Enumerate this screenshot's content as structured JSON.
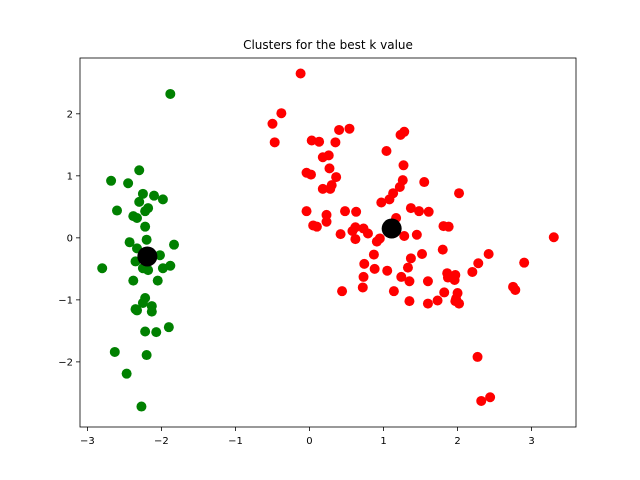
{
  "chart_data": {
    "type": "scatter",
    "title": "Clusters for the best k value",
    "xlabel": "",
    "ylabel": "",
    "xlim": [
      -3.1,
      3.6
    ],
    "ylim": [
      -3.05,
      2.9
    ],
    "xticks": [
      -3,
      -2,
      -1,
      0,
      1,
      2,
      3
    ],
    "xtick_labels": [
      "−3",
      "−2",
      "−1",
      "0",
      "1",
      "2",
      "3"
    ],
    "yticks": [
      -2,
      -1,
      0,
      1,
      2
    ],
    "ytick_labels": [
      "−2",
      "−1",
      "0",
      "1",
      "2"
    ],
    "grid": false,
    "legend": "none",
    "series": [
      {
        "color": "#008000",
        "points": [
          [
            -1.88,
            2.32
          ],
          [
            -2.68,
            0.92
          ],
          [
            -2.3,
            1.09
          ],
          [
            -2.45,
            0.88
          ],
          [
            -2.6,
            0.44
          ],
          [
            -2.25,
            0.71
          ],
          [
            -2.1,
            0.68
          ],
          [
            -1.98,
            0.62
          ],
          [
            -2.3,
            0.58
          ],
          [
            -2.18,
            0.48
          ],
          [
            -2.22,
            0.43
          ],
          [
            -2.38,
            0.35
          ],
          [
            -2.33,
            0.32
          ],
          [
            -2.22,
            0.18
          ],
          [
            -2.2,
            -0.03
          ],
          [
            -2.43,
            -0.07
          ],
          [
            -1.83,
            -0.11
          ],
          [
            -2.33,
            -0.17
          ],
          [
            -2.02,
            -0.28
          ],
          [
            -2.8,
            -0.49
          ],
          [
            -1.98,
            -0.49
          ],
          [
            -2.25,
            -0.49
          ],
          [
            -2.18,
            -0.52
          ],
          [
            -1.88,
            -0.45
          ],
          [
            -2.38,
            -0.69
          ],
          [
            -2.05,
            -0.69
          ],
          [
            -2.22,
            -0.97
          ],
          [
            -2.25,
            -1.05
          ],
          [
            -2.13,
            -1.1
          ],
          [
            -2.35,
            -1.15
          ],
          [
            -2.33,
            -1.17
          ],
          [
            -2.13,
            -1.19
          ],
          [
            -1.9,
            -1.44
          ],
          [
            -2.22,
            -1.51
          ],
          [
            -2.07,
            -1.52
          ],
          [
            -2.63,
            -1.84
          ],
          [
            -2.2,
            -1.89
          ],
          [
            -2.47,
            -2.19
          ],
          [
            -2.27,
            -2.72
          ],
          [
            -2.35,
            -0.38
          ]
        ]
      },
      {
        "color": "#ff0000",
        "points": [
          [
            -0.12,
            2.65
          ],
          [
            -0.38,
            2.01
          ],
          [
            -0.5,
            1.84
          ],
          [
            -0.47,
            1.54
          ],
          [
            0.4,
            1.74
          ],
          [
            0.54,
            1.76
          ],
          [
            1.28,
            1.71
          ],
          [
            1.23,
            1.66
          ],
          [
            0.03,
            1.57
          ],
          [
            0.13,
            1.55
          ],
          [
            0.35,
            1.54
          ],
          [
            0.26,
            1.33
          ],
          [
            0.18,
            1.3
          ],
          [
            1.04,
            1.4
          ],
          [
            1.27,
            1.17
          ],
          [
            0.27,
            1.12
          ],
          [
            -0.04,
            1.05
          ],
          [
            0.02,
            1.02
          ],
          [
            0.36,
            0.98
          ],
          [
            1.26,
            0.93
          ],
          [
            1.55,
            0.9
          ],
          [
            0.3,
            0.85
          ],
          [
            0.18,
            0.79
          ],
          [
            0.28,
            0.79
          ],
          [
            1.22,
            0.82
          ],
          [
            1.13,
            0.72
          ],
          [
            2.02,
            0.72
          ],
          [
            1.08,
            0.62
          ],
          [
            0.97,
            0.57
          ],
          [
            1.37,
            0.48
          ],
          [
            1.48,
            0.43
          ],
          [
            1.61,
            0.42
          ],
          [
            -0.04,
            0.43
          ],
          [
            0.23,
            0.37
          ],
          [
            0.48,
            0.43
          ],
          [
            0.63,
            0.42
          ],
          [
            1.17,
            0.32
          ],
          [
            0.23,
            0.26
          ],
          [
            0.05,
            0.2
          ],
          [
            0.1,
            0.18
          ],
          [
            0.62,
            0.17
          ],
          [
            0.73,
            0.15
          ],
          [
            0.58,
            0.11
          ],
          [
            0.42,
            0.06
          ],
          [
            0.79,
            0.07
          ],
          [
            1.81,
            0.19
          ],
          [
            1.88,
            0.18
          ],
          [
            1.45,
            0.05
          ],
          [
            1.28,
            0.03
          ],
          [
            0.62,
            -0.02
          ],
          [
            0.95,
            -0.01
          ],
          [
            0.91,
            -0.06
          ],
          [
            3.3,
            0.01
          ],
          [
            1.8,
            -0.19
          ],
          [
            1.52,
            -0.26
          ],
          [
            1.37,
            -0.33
          ],
          [
            0.87,
            -0.27
          ],
          [
            2.42,
            -0.26
          ],
          [
            0.74,
            -0.42
          ],
          [
            0.88,
            -0.5
          ],
          [
            1.05,
            -0.53
          ],
          [
            1.33,
            -0.48
          ],
          [
            1.86,
            -0.57
          ],
          [
            2.28,
            -0.41
          ],
          [
            2.9,
            -0.4
          ],
          [
            2.2,
            -0.55
          ],
          [
            0.73,
            -0.63
          ],
          [
            1.24,
            -0.63
          ],
          [
            1.35,
            -0.7
          ],
          [
            1.87,
            -0.64
          ],
          [
            1.97,
            -0.6
          ],
          [
            1.96,
            -0.68
          ],
          [
            1.6,
            -0.7
          ],
          [
            0.72,
            -0.8
          ],
          [
            2.75,
            -0.79
          ],
          [
            2.78,
            -0.84
          ],
          [
            0.44,
            -0.86
          ],
          [
            1.14,
            -0.86
          ],
          [
            1.82,
            -0.88
          ],
          [
            2.0,
            -0.89
          ],
          [
            1.98,
            -0.98
          ],
          [
            1.73,
            -1.01
          ],
          [
            1.35,
            -1.02
          ],
          [
            1.97,
            -1.02
          ],
          [
            1.6,
            -1.06
          ],
          [
            2.02,
            -1.06
          ],
          [
            2.27,
            -1.92
          ],
          [
            2.32,
            -2.63
          ],
          [
            2.44,
            -2.57
          ]
        ]
      }
    ],
    "centroids": {
      "color": "#000000",
      "points": [
        [
          -2.19,
          -0.3
        ],
        [
          1.11,
          0.15
        ]
      ]
    }
  }
}
